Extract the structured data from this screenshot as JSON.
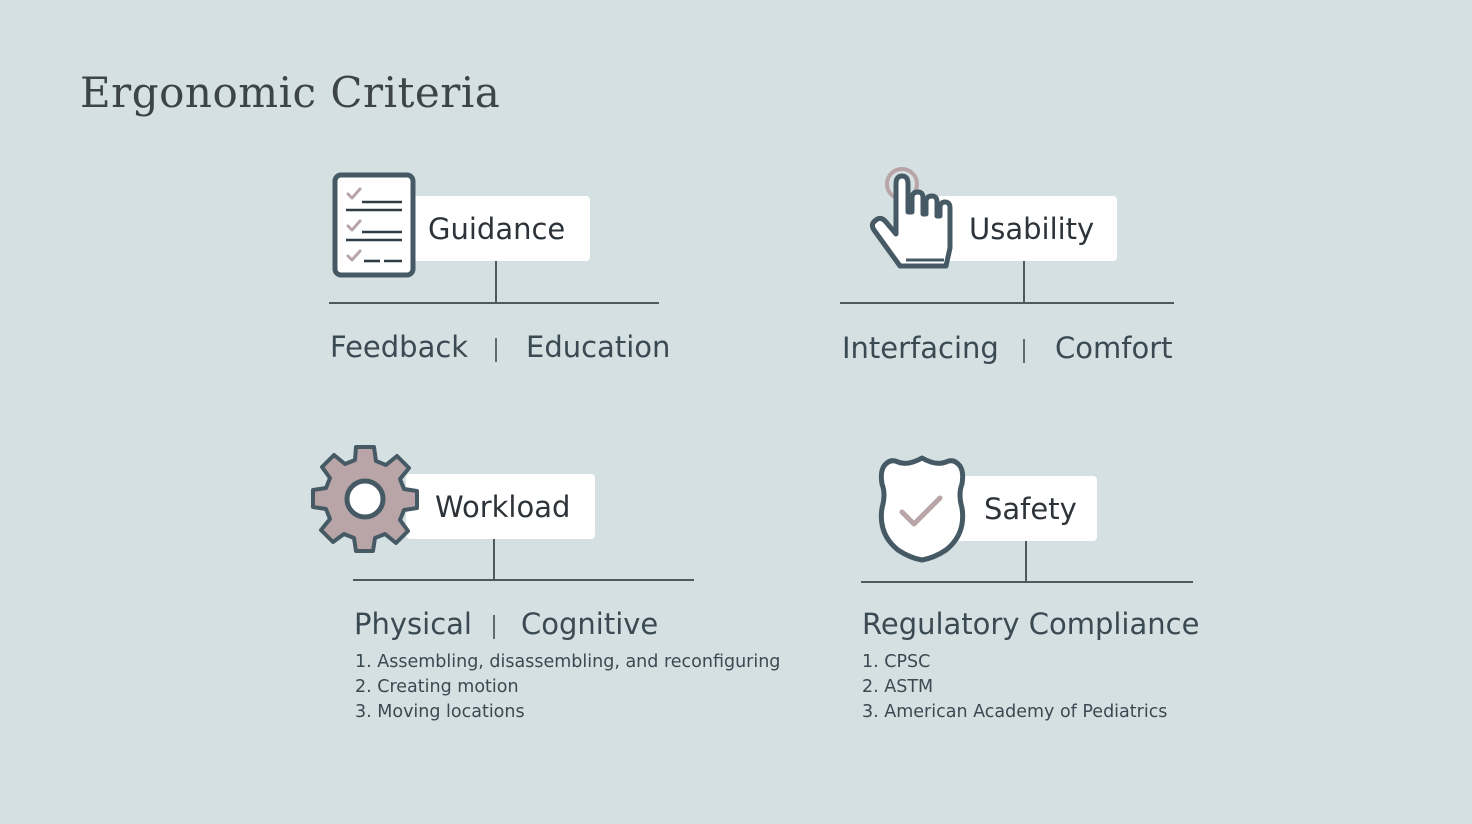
{
  "title": "Ergonomic Criteria",
  "blocks": {
    "guidance": {
      "label": "Guidance",
      "left": "Feedback",
      "right": "Education"
    },
    "usability": {
      "label": "Usability",
      "left": "Interfacing",
      "right": "Comfort"
    },
    "workload": {
      "label": "Workload",
      "left": "Physical",
      "right": "Cognitive",
      "items": [
        "1. Assembling, disassembling, and reconfiguring",
        "2. Creating motion",
        "3. Moving locations"
      ]
    },
    "safety": {
      "label": "Safety",
      "heading": "Regulatory Compliance",
      "items": [
        "1. CPSC",
        "2. ASTM",
        "3. American Academy of Pediatrics"
      ]
    }
  },
  "colors": {
    "background": "#d5e0e2",
    "icon_outline": "#455a64",
    "icon_accent": "#b9a5a8",
    "label_bg": "#ffffff"
  },
  "icons": {
    "guidance": "checklist-icon",
    "usability": "pointing-hand-icon",
    "workload": "gear-icon",
    "safety": "shield-check-icon"
  }
}
